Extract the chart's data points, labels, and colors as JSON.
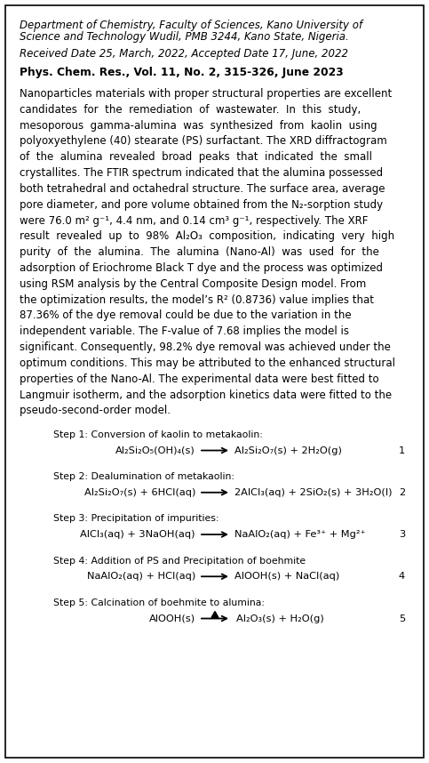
{
  "bg_color": "#ffffff",
  "border_color": "#000000",
  "figsize": [
    4.83,
    8.58
  ],
  "dpi": 100,
  "italic_header_line1": "Department of Chemistry, Faculty of Sciences, Kano University of",
  "italic_header_line2": "Science and Technology Wudil, PMB 3244, Kano State, Nigeria.",
  "italic_received": "Received Date 25, March, 2022, Accepted Date 17, June, 2022",
  "bold_journal": "Phys. Chem. Res., Vol. 11, No. 2, 315-326, June 2023",
  "abstract_lines": [
    "Nanoparticles materials with proper structural properties are excellent",
    "candidates  for  the  remediation  of  wastewater.  In  this  study,",
    "mesoporous  gamma-alumina  was  synthesized  from  kaolin  using",
    "polyoxyethylene (40) stearate (PS) surfactant. The XRD diffractogram",
    "of  the  alumina  revealed  broad  peaks  that  indicated  the  small",
    "crystallites. The FTIR spectrum indicated that the alumina possessed",
    "both tetrahedral and octahedral structure. The surface area, average",
    "pore diameter, and pore volume obtained from the N₂-sorption study",
    "were 76.0 m² g⁻¹, 4.4 nm, and 0.14 cm³ g⁻¹, respectively. The XRF",
    "result  revealed  up  to  98%  Al₂O₃  composition,  indicating  very  high",
    "purity  of  the  alumina.  The  alumina  (Nano-Al)  was  used  for  the",
    "adsorption of Eriochrome Black T dye and the process was optimized",
    "using RSM analysis by the Central Composite Design model. From",
    "the optimization results, the model’s R² (0.8736) value implies that",
    "87.36% of the dye removal could be due to the variation in the",
    "independent variable. The F-value of 7.68 implies the model is",
    "significant. Consequently, 98.2% dye removal was achieved under the",
    "optimum conditions. This may be attributed to the enhanced structural",
    "properties of the Nano-Al. The experimental data were best fitted to",
    "Langmuir isotherm, and the adsorption kinetics data were fitted to the",
    "pseudo-second-order model."
  ],
  "steps": [
    {
      "label": "Step 1: Conversion of kaolin to metakaolin:",
      "eq_left": "Al₂Si₂O₅(OH)₄",
      "eq_left_sub": "(s)",
      "eq_right": "Al₂Si₂O₇",
      "eq_right_sub": "(s)",
      "eq_right2": " + 2H₂O",
      "eq_right2_sub": "(g)",
      "number": "1"
    },
    {
      "label": "Step 2: Dealumination of metakaolin:",
      "eq_left": "Al₂Si₂O₇",
      "eq_left_sub": "(s)",
      "eq_left2": " + 6HCl",
      "eq_left2_sub": "(aq)",
      "eq_right": "2AlCl₃",
      "eq_right_sub": "(aq)",
      "eq_right2": " + 2SiO₂",
      "eq_right2_sub": "(s)",
      "eq_right3": " + 3H₂O",
      "eq_right3_sub": "(l)",
      "number": "2"
    },
    {
      "label": "Step 3: Precipitation of impurities:",
      "eq_left": "AlCl₃",
      "eq_left_sub": "(aq)",
      "eq_left2": " + 3NaOH",
      "eq_left2_sub": "(aq)",
      "eq_right": "NaAlO₂",
      "eq_right_sub": "(aq)",
      "eq_right2": " + Fe³⁺ + Mg²⁺",
      "number": "3"
    },
    {
      "label": "Step 4: Addition of PS and Precipitation of boehmite",
      "eq_left": "NaAlO₂",
      "eq_left_sub": "(aq)",
      "eq_left2": " + HCl",
      "eq_left2_sub": "(aq)",
      "eq_right": "AlOOH",
      "eq_right_sub": "(s)",
      "eq_right2": " + NaCl",
      "eq_right2_sub": "(aq)",
      "number": "4"
    },
    {
      "label": "Step 5: Calcination of boehmite to alumina:",
      "eq_left": "AlOOH",
      "eq_left_sub": "(s)",
      "eq_right": "Al₂O₃",
      "eq_right_sub": "(s)",
      "eq_right2": " + H₂O",
      "eq_right2_sub": "(g)",
      "number": "5",
      "has_heat": true
    }
  ],
  "font_size_main": 8.5,
  "font_size_sub": 6.0,
  "font_size_label": 7.8,
  "font_size_journal": 8.8,
  "font_size_eq": 8.2
}
